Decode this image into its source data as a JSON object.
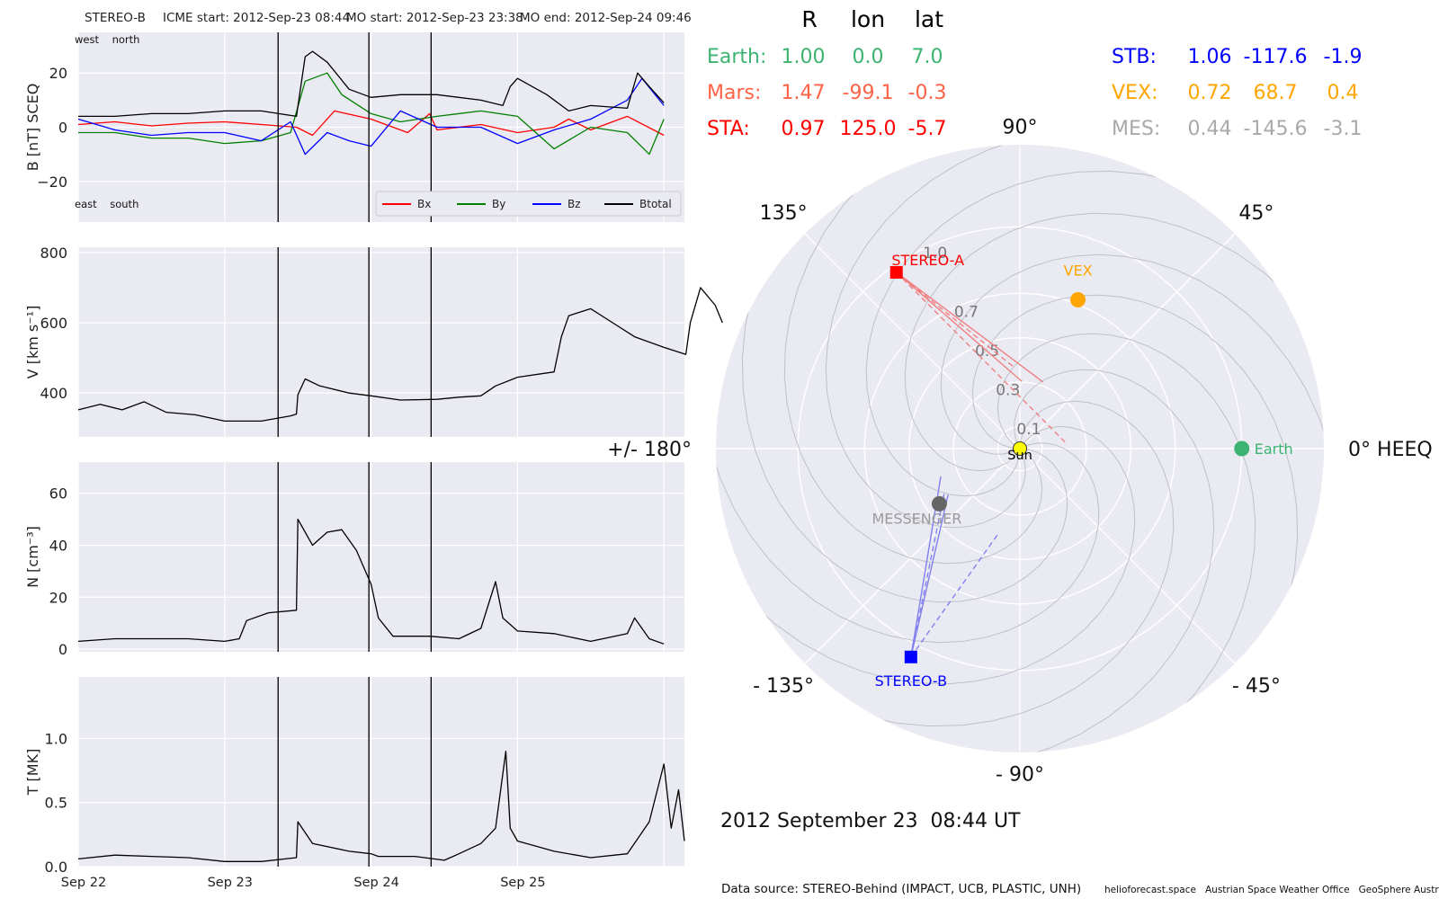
{
  "header": {
    "spacecraft": "STEREO-B",
    "icme_start": "ICME start: 2012-Sep-23 08:44",
    "mo_start": "MO start: 2012-Sep-23 23:38",
    "mo_end": "MO end: 2012-Sep-24 09:46"
  },
  "chart_data": [
    {
      "type": "line",
      "id": "b",
      "ylabel": "B [nT] SCEQ",
      "ylim": [
        -35,
        35
      ],
      "yticks": [
        -20,
        0,
        20
      ],
      "corner_labels": {
        "top": "west    north",
        "bottom": "east    south"
      },
      "legend": {
        "placement": "lower-right",
        "entries": [
          "Bx",
          "By",
          "Bz",
          "Btotal"
        ]
      },
      "series": [
        {
          "name": "Bx",
          "color": "#ff0000",
          "points": [
            [
              0,
              1
            ],
            [
              0.25,
              2
            ],
            [
              0.5,
              0.5
            ],
            [
              0.75,
              1.5
            ],
            [
              1,
              2
            ],
            [
              1.25,
              1
            ],
            [
              1.49,
              0
            ],
            [
              1.6,
              -3
            ],
            [
              1.75,
              6
            ],
            [
              2,
              3
            ],
            [
              2.25,
              -2
            ],
            [
              2.4,
              5
            ],
            [
              2.45,
              -1
            ],
            [
              2.75,
              1
            ],
            [
              3,
              -2
            ],
            [
              3.25,
              0
            ],
            [
              3.35,
              3
            ],
            [
              3.5,
              -1
            ],
            [
              3.75,
              4
            ],
            [
              4,
              -3
            ]
          ]
        },
        {
          "name": "By",
          "color": "#008000",
          "points": [
            [
              0,
              -2
            ],
            [
              0.25,
              -2
            ],
            [
              0.5,
              -4
            ],
            [
              0.75,
              -4
            ],
            [
              1,
              -6
            ],
            [
              1.25,
              -5
            ],
            [
              1.45,
              -2
            ],
            [
              1.55,
              17
            ],
            [
              1.7,
              20
            ],
            [
              1.8,
              12
            ],
            [
              2,
              5
            ],
            [
              2.2,
              2
            ],
            [
              2.45,
              4
            ],
            [
              2.75,
              6
            ],
            [
              3,
              4
            ],
            [
              3.25,
              -8
            ],
            [
              3.5,
              0
            ],
            [
              3.75,
              -2
            ],
            [
              3.9,
              -10
            ],
            [
              4,
              3
            ]
          ]
        },
        {
          "name": "Bz",
          "color": "#0000ff",
          "points": [
            [
              0,
              3
            ],
            [
              0.25,
              -1
            ],
            [
              0.5,
              -3
            ],
            [
              0.75,
              -2
            ],
            [
              1,
              -2
            ],
            [
              1.25,
              -5
            ],
            [
              1.45,
              2
            ],
            [
              1.55,
              -10
            ],
            [
              1.7,
              -2
            ],
            [
              1.85,
              -5
            ],
            [
              2,
              -7
            ],
            [
              2.2,
              6
            ],
            [
              2.45,
              0
            ],
            [
              2.75,
              0
            ],
            [
              3,
              -6
            ],
            [
              3.25,
              -1
            ],
            [
              3.5,
              3
            ],
            [
              3.75,
              10
            ],
            [
              3.85,
              18
            ],
            [
              4,
              8
            ]
          ]
        },
        {
          "name": "Btotal",
          "color": "#000000",
          "points": [
            [
              0,
              4
            ],
            [
              0.25,
              4
            ],
            [
              0.5,
              5
            ],
            [
              0.75,
              5
            ],
            [
              1,
              6
            ],
            [
              1.25,
              6
            ],
            [
              1.49,
              4
            ],
            [
              1.55,
              26
            ],
            [
              1.6,
              28
            ],
            [
              1.7,
              24
            ],
            [
              1.85,
              14
            ],
            [
              2,
              11
            ],
            [
              2.2,
              12
            ],
            [
              2.45,
              12
            ],
            [
              2.75,
              10
            ],
            [
              2.9,
              8
            ],
            [
              2.95,
              15
            ],
            [
              3,
              18
            ],
            [
              3.2,
              12
            ],
            [
              3.35,
              6
            ],
            [
              3.5,
              8
            ],
            [
              3.75,
              7
            ],
            [
              3.82,
              20
            ],
            [
              3.9,
              15
            ],
            [
              4,
              9
            ]
          ]
        }
      ]
    },
    {
      "type": "line",
      "id": "v",
      "ylabel": "V [km s⁻¹]",
      "ylim": [
        275,
        815
      ],
      "yticks": [
        400,
        600,
        800
      ],
      "series": [
        {
          "color": "#000000",
          "points": [
            [
              0,
              352
            ],
            [
              0.15,
              368
            ],
            [
              0.3,
              352
            ],
            [
              0.45,
              375
            ],
            [
              0.6,
              345
            ],
            [
              0.8,
              338
            ],
            [
              1,
              320
            ],
            [
              1.25,
              320
            ],
            [
              1.45,
              335
            ],
            [
              1.49,
              340
            ],
            [
              1.5,
              395
            ],
            [
              1.55,
              440
            ],
            [
              1.65,
              420
            ],
            [
              1.85,
              400
            ],
            [
              2,
              392
            ],
            [
              2.2,
              380
            ],
            [
              2.45,
              382
            ],
            [
              2.6,
              388
            ],
            [
              2.75,
              392
            ],
            [
              2.85,
              420
            ],
            [
              3,
              445
            ],
            [
              3.25,
              460
            ],
            [
              3.3,
              560
            ],
            [
              3.35,
              620
            ],
            [
              3.5,
              640
            ],
            [
              3.65,
              600
            ],
            [
              3.8,
              560
            ],
            [
              4,
              530
            ],
            [
              4.15,
              510
            ],
            [
              4.18,
              600
            ],
            [
              4.25,
              700
            ],
            [
              4.35,
              650
            ],
            [
              4.4,
              600
            ]
          ]
        }
      ]
    },
    {
      "type": "line",
      "id": "n",
      "ylabel": "N [cm⁻³]",
      "ylim": [
        -1,
        72
      ],
      "yticks": [
        0,
        20,
        40,
        60
      ],
      "series": [
        {
          "color": "#000000",
          "points": [
            [
              0,
              3
            ],
            [
              0.25,
              4
            ],
            [
              0.5,
              4
            ],
            [
              0.75,
              4
            ],
            [
              1,
              3
            ],
            [
              1.1,
              4
            ],
            [
              1.15,
              11
            ],
            [
              1.3,
              14
            ],
            [
              1.49,
              15
            ],
            [
              1.5,
              50
            ],
            [
              1.6,
              40
            ],
            [
              1.7,
              45
            ],
            [
              1.8,
              46
            ],
            [
              1.9,
              38
            ],
            [
              2,
              25
            ],
            [
              2.05,
              12
            ],
            [
              2.15,
              5
            ],
            [
              2.4,
              5
            ],
            [
              2.6,
              4
            ],
            [
              2.75,
              8
            ],
            [
              2.85,
              26
            ],
            [
              2.9,
              12
            ],
            [
              3,
              7
            ],
            [
              3.25,
              6
            ],
            [
              3.5,
              3
            ],
            [
              3.75,
              6
            ],
            [
              3.8,
              12
            ],
            [
              3.9,
              4
            ],
            [
              4,
              2
            ]
          ]
        }
      ]
    },
    {
      "type": "line",
      "id": "t",
      "ylabel": "T [MK]",
      "ylim": [
        0,
        1.48
      ],
      "yticks": [
        0.0,
        0.5,
        1.0
      ],
      "xticks": [
        "Sep 22",
        "Sep 23",
        "Sep 24",
        "Sep 25"
      ],
      "series": [
        {
          "color": "#000000",
          "points": [
            [
              0,
              0.06
            ],
            [
              0.25,
              0.09
            ],
            [
              0.5,
              0.08
            ],
            [
              0.75,
              0.07
            ],
            [
              1,
              0.04
            ],
            [
              1.25,
              0.04
            ],
            [
              1.49,
              0.07
            ],
            [
              1.5,
              0.35
            ],
            [
              1.6,
              0.18
            ],
            [
              1.85,
              0.12
            ],
            [
              2,
              0.1
            ],
            [
              2.05,
              0.08
            ],
            [
              2.3,
              0.08
            ],
            [
              2.5,
              0.05
            ],
            [
              2.6,
              0.1
            ],
            [
              2.75,
              0.18
            ],
            [
              2.85,
              0.3
            ],
            [
              2.92,
              0.9
            ],
            [
              2.95,
              0.3
            ],
            [
              3,
              0.2
            ],
            [
              3.25,
              0.12
            ],
            [
              3.5,
              0.07
            ],
            [
              3.75,
              0.1
            ],
            [
              3.9,
              0.35
            ],
            [
              4,
              0.8
            ],
            [
              4.05,
              0.3
            ],
            [
              4.1,
              0.6
            ],
            [
              4.14,
              0.2
            ]
          ]
        }
      ]
    },
    {
      "type": "scatter",
      "id": "polar",
      "angular_labels": [
        "0° HEEQ",
        "45°",
        "90°",
        "135°",
        "+/- 180°",
        "- 135°",
        "- 90°",
        "- 45°"
      ],
      "radial_labels": [
        "0.1",
        "0.3",
        "0.5",
        "0.7",
        "1.0"
      ],
      "points": [
        {
          "name": "Sun",
          "r": 0.0,
          "lon": 0.0,
          "color": "#ffff00"
        },
        {
          "name": "Earth",
          "r": 1.0,
          "lon": 0.0,
          "color": "#3cb371"
        },
        {
          "name": "STEREO-A",
          "r": 0.97,
          "lon": 125.0,
          "color": "#ff0000"
        },
        {
          "name": "STEREO-B",
          "r": 1.06,
          "lon": -117.6,
          "color": "#0000ff"
        },
        {
          "name": "VEX",
          "r": 0.72,
          "lon": 68.7,
          "color": "#ffa500"
        },
        {
          "name": "MESSENGER",
          "r": 0.44,
          "lon": -145.6,
          "color": "#666666"
        }
      ]
    }
  ],
  "event_lines_day": [
    1.365,
    1.985,
    2.41
  ],
  "positions_table": {
    "headers": [
      "R",
      "lon",
      "lat"
    ],
    "left_rows": [
      {
        "name": "Earth:",
        "r": "1.00",
        "lon": "0.0",
        "lat": "7.0",
        "color": "#3cb371"
      },
      {
        "name": "Mars:",
        "r": "1.47",
        "lon": "-99.1",
        "lat": "-0.3",
        "color": "#ff6347"
      },
      {
        "name": "STA:",
        "r": "0.97",
        "lon": "125.0",
        "lat": "-5.7",
        "color": "#ff0000"
      }
    ],
    "right_rows": [
      {
        "name": "STB:",
        "r": "1.06",
        "lon": "-117.6",
        "lat": "-1.9",
        "color": "#0000ff"
      },
      {
        "name": "VEX:",
        "r": "0.72",
        "lon": "68.7",
        "lat": "0.4",
        "color": "#ffa500"
      },
      {
        "name": "MES:",
        "r": "0.44",
        "lon": "-145.6",
        "lat": "-3.1",
        "color": "#a9a9a9"
      }
    ]
  },
  "footer": {
    "timestamp": "2012 September 23  08:44 UT",
    "source": "Data source: STEREO-Behind (IMPACT, UCB, PLASTIC, UNH)",
    "credits": "helioforecast.space   Austrian Space Weather Office   GeoSphere Austria"
  },
  "colors": {
    "panel_bg": "#eaeaf2",
    "grid": "#ffffff",
    "fan_red": "#f08080",
    "fan_blue": "#8080f0"
  }
}
